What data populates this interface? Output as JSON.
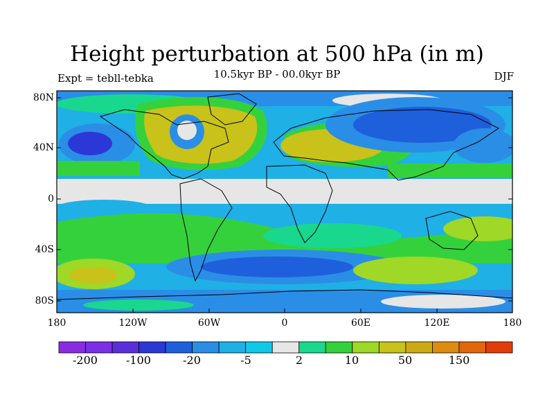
{
  "map": {
    "title": "Height perturbation at 500 hPa (in m)",
    "subtitle": "10.5kyr BP - 00.0kyr BP",
    "left_label": "Expt = tebll-tebka",
    "right_label": "DJF",
    "projection": "equirectangular",
    "lat_labels": [
      "80N",
      "40N",
      "0",
      "40S",
      "80S"
    ],
    "lon_labels": [
      "180",
      "120W",
      "60W",
      "0",
      "60E",
      "120E",
      "180"
    ],
    "colorbar": {
      "tick_labels": [
        "-200",
        "-100",
        "-20",
        "-5",
        "2",
        "10",
        "50",
        "150"
      ],
      "colors": [
        "#8a2be2",
        "#7b2fe6",
        "#5a2fd9",
        "#2c38d6",
        "#1e5fdc",
        "#2a8ee6",
        "#1fb0e6",
        "#10c9e8",
        "#e6e6e6",
        "#19d88e",
        "#35d13c",
        "#9fd826",
        "#c8c21a",
        "#ccaa14",
        "#dd8c10",
        "#e2660c",
        "#e13c0a"
      ]
    },
    "regions": {
      "sea_ice": "#e6e6e6",
      "neg_light": "#1fb0e6",
      "neg_mid": "#2a8ee6",
      "neg_strong": "#1e5fdc",
      "neg_deep": "#2c38d6",
      "pos_light": "#19d88e",
      "pos_green": "#35d13c",
      "pos_yellow": "#9fd826",
      "pos_olive": "#c8c21a",
      "pos_orange": "#ccaa14"
    }
  }
}
